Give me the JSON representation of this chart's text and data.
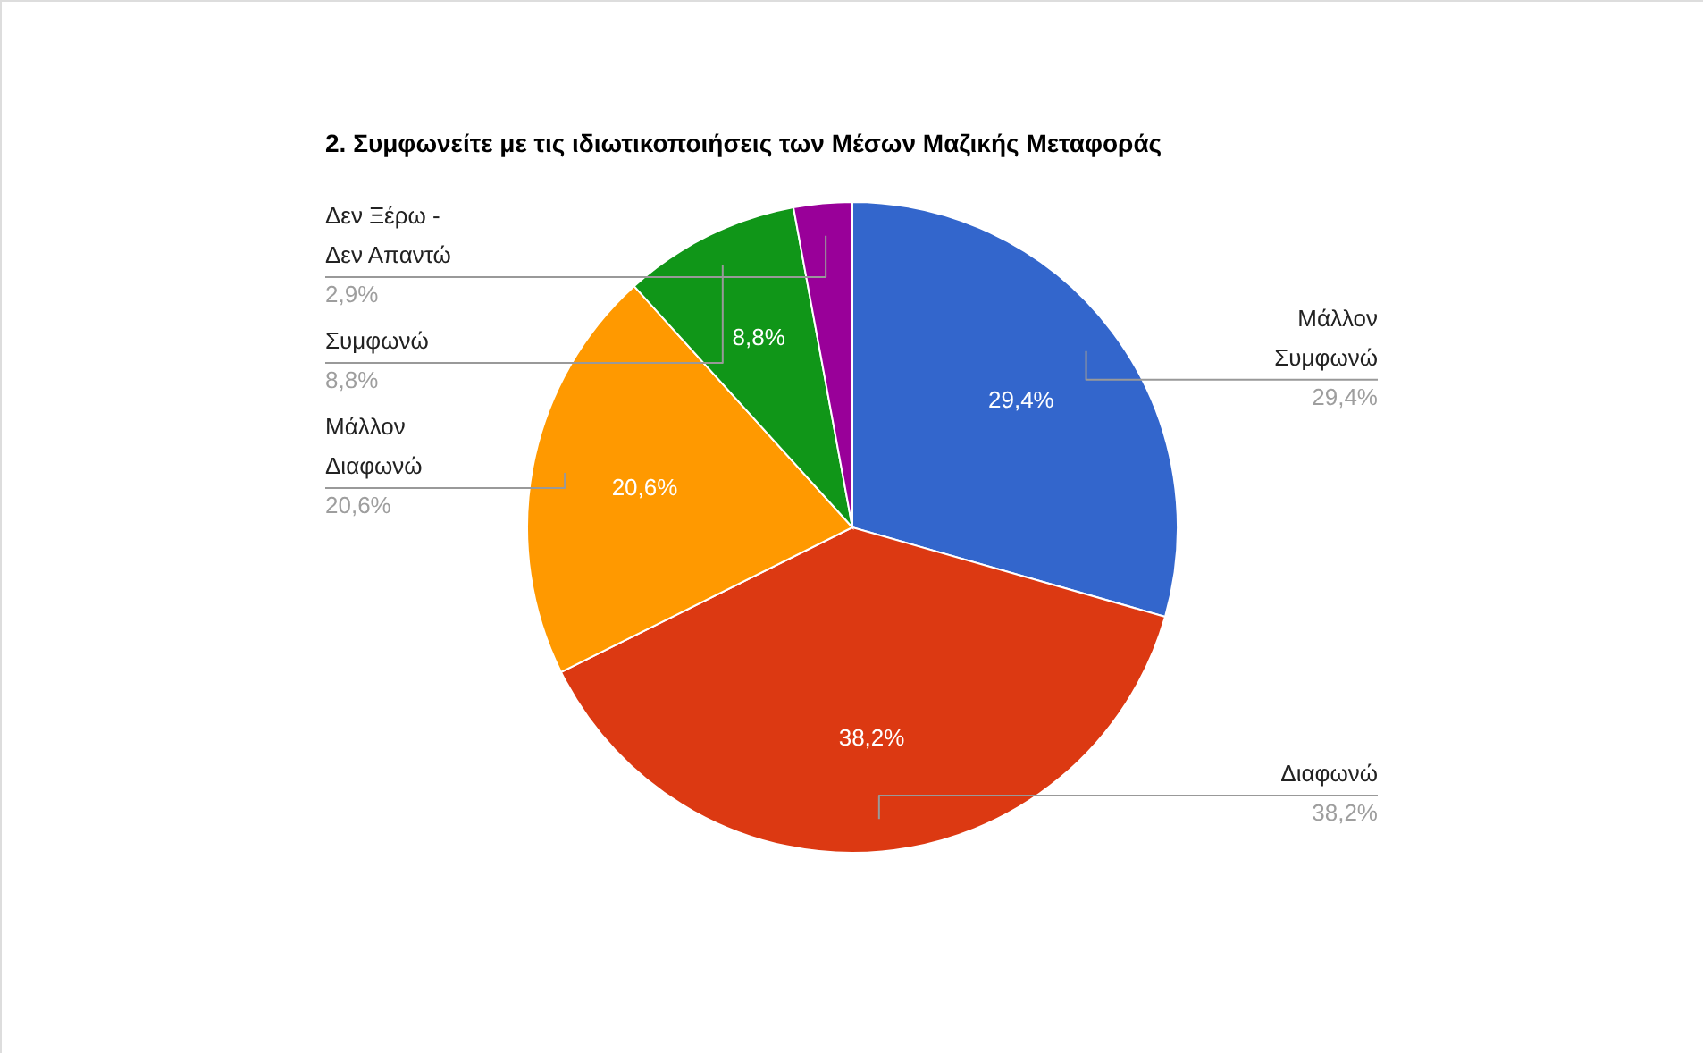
{
  "chart_data": {
    "type": "pie",
    "title": "2. Συμφωνείτε με τις ιδιωτικοποιήσεις των Μέσων Μαζικής Μεταφοράς",
    "categories": [
      "Μάλλον Συμφωνώ",
      "Διαφωνώ",
      "Μάλλον Διαφωνώ",
      "Συμφωνώ",
      "Δεν Ξέρω - Δεν Απαντώ"
    ],
    "values": [
      29.4,
      38.2,
      20.6,
      8.8,
      2.9
    ],
    "colors": [
      "#3366cc",
      "#dc3912",
      "#ff9900",
      "#109618",
      "#990099"
    ],
    "value_labels": [
      "29,4%",
      "38,2%",
      "20,6%",
      "8,8%",
      "2,9%"
    ]
  }
}
